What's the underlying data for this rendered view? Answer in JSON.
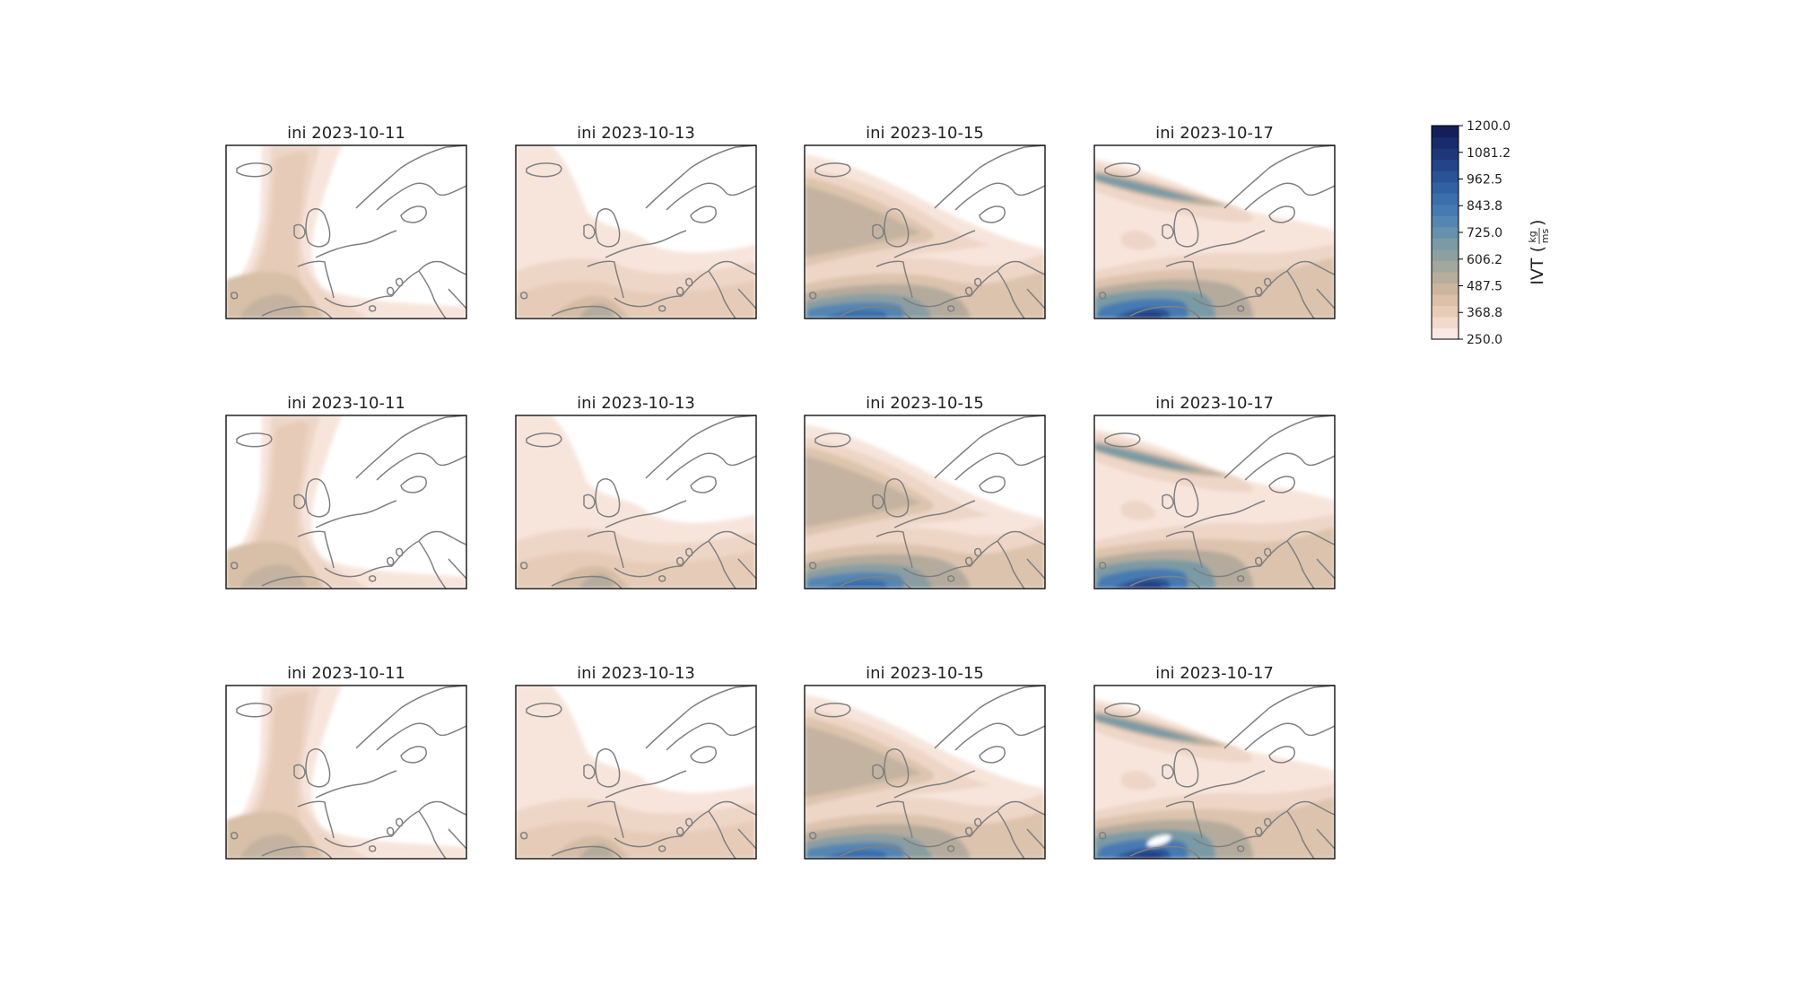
{
  "chart_data": {
    "type": "heatmap",
    "variable": "IVT",
    "colorbar": {
      "label": "IVT",
      "unit_numerator": "kg",
      "unit_denominator": "ms",
      "range": [
        250.0,
        1200.0
      ],
      "tick_labels": [
        "250.0",
        "368.8",
        "487.5",
        "606.2",
        "725.0",
        "843.8",
        "962.5",
        "1081.2",
        "1200.0"
      ],
      "level_colors": [
        "#f9e9e2",
        "#f1d9cc",
        "#e8ccb8",
        "#dcc0a8",
        "#cbb59f",
        "#b7ad9c",
        "#a3a79e",
        "#8e9fa0",
        "#7a9aa5",
        "#6690ab",
        "#5586b2",
        "#467ab3",
        "#3b6eab",
        "#3261a3",
        "#2a5296",
        "#234488",
        "#1e377a",
        "#1a2b6c",
        "#141f5a"
      ]
    },
    "panels": [
      {
        "row": 1,
        "col": 1,
        "title": "ini 2023-10-11"
      },
      {
        "row": 1,
        "col": 2,
        "title": "ini 2023-10-13"
      },
      {
        "row": 1,
        "col": 3,
        "title": "ini 2023-10-15"
      },
      {
        "row": 1,
        "col": 4,
        "title": "ini 2023-10-17"
      },
      {
        "row": 2,
        "col": 1,
        "title": "ini 2023-10-11"
      },
      {
        "row": 2,
        "col": 2,
        "title": "ini 2023-10-13"
      },
      {
        "row": 2,
        "col": 3,
        "title": "ini 2023-10-15"
      },
      {
        "row": 2,
        "col": 4,
        "title": "ini 2023-10-17"
      },
      {
        "row": 3,
        "col": 1,
        "title": "ini 2023-10-11"
      },
      {
        "row": 3,
        "col": 2,
        "title": "ini 2023-10-13"
      },
      {
        "row": 3,
        "col": 3,
        "title": "ini 2023-10-15"
      },
      {
        "row": 3,
        "col": 4,
        "title": "ini 2023-10-17"
      }
    ]
  }
}
